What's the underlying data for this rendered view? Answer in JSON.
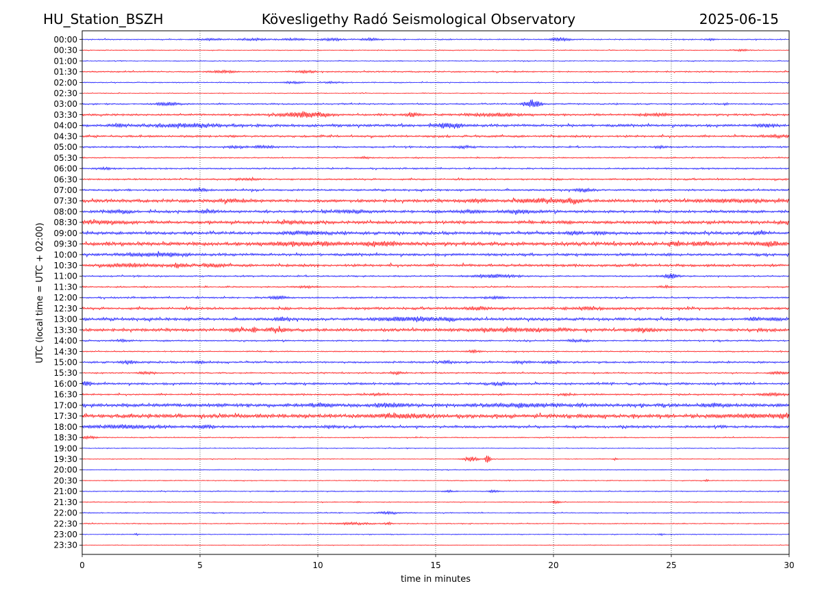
{
  "chart_data": {
    "type": "line",
    "title_left": "HU_Station_BSZH",
    "title_center": "Kövesligethy Radó Seismological Observatory",
    "title_right": "2025-06-15",
    "xlabel": "time in minutes",
    "ylabel": "UTC (local time = UTC + 02:00)",
    "xlim": [
      0,
      30
    ],
    "x_ticks": [
      0,
      5,
      10,
      15,
      20,
      25,
      30
    ],
    "x_gridlines": [
      5,
      10,
      15,
      20,
      25
    ],
    "row_colors": [
      "#0000ff",
      "#ff0000"
    ],
    "rows": [
      {
        "label": "00:00",
        "noise": 0.7,
        "events": [
          [
            5.5,
            0.5,
            1.2
          ],
          [
            7.3,
            0.6,
            1.5
          ],
          [
            9.0,
            0.5,
            1.5
          ],
          [
            10.6,
            0.5,
            1.5
          ],
          [
            12.2,
            0.5,
            1.5
          ],
          [
            20.3,
            0.4,
            2.5
          ],
          [
            26.7,
            0.2,
            1.2
          ]
        ]
      },
      {
        "label": "00:30",
        "noise": 0.5,
        "events": [
          [
            28.0,
            0.3,
            1.2
          ]
        ]
      },
      {
        "label": "01:00",
        "noise": 0.5,
        "events": []
      },
      {
        "label": "01:30",
        "noise": 0.8,
        "events": [
          [
            6.0,
            0.5,
            1.4
          ],
          [
            9.5,
            0.5,
            1.2
          ]
        ]
      },
      {
        "label": "02:00",
        "noise": 0.6,
        "events": [
          [
            9.0,
            0.4,
            1.5
          ],
          [
            10.6,
            0.3,
            1.3
          ]
        ]
      },
      {
        "label": "02:30",
        "noise": 0.5,
        "events": []
      },
      {
        "label": "03:00",
        "noise": 0.8,
        "events": [
          [
            3.6,
            0.6,
            2.0
          ],
          [
            19.1,
            0.35,
            6.0
          ],
          [
            27.3,
            0.1,
            1.4
          ]
        ]
      },
      {
        "label": "03:30",
        "noise": 1.2,
        "events": [
          [
            9.5,
            1.0,
            3.5
          ],
          [
            14.0,
            0.3,
            2.5
          ],
          [
            17.5,
            1.2,
            2.0
          ],
          [
            24.5,
            0.8,
            1.5
          ]
        ]
      },
      {
        "label": "04:00",
        "noise": 1.5,
        "events": [
          [
            1.5,
            0.3,
            2.0
          ],
          [
            4.5,
            1.5,
            1.8
          ],
          [
            15.6,
            0.6,
            3.0
          ],
          [
            29.0,
            0.5,
            1.5
          ]
        ]
      },
      {
        "label": "04:30",
        "noise": 1.2,
        "events": [
          [
            29.5,
            0.6,
            1.5
          ]
        ]
      },
      {
        "label": "05:00",
        "noise": 1.0,
        "events": [
          [
            6.5,
            0.4,
            1.5
          ],
          [
            7.7,
            0.4,
            1.6
          ],
          [
            16.2,
            0.4,
            1.6
          ],
          [
            24.5,
            0.2,
            2.0
          ]
        ]
      },
      {
        "label": "05:30",
        "noise": 0.7,
        "events": [
          [
            12.0,
            0.2,
            1.5
          ]
        ]
      },
      {
        "label": "06:00",
        "noise": 0.9,
        "events": [
          [
            1.0,
            0.3,
            1.3
          ]
        ]
      },
      {
        "label": "06:30",
        "noise": 1.0,
        "events": [
          [
            7.0,
            0.6,
            1.2
          ]
        ]
      },
      {
        "label": "07:00",
        "noise": 1.1,
        "events": [
          [
            5.0,
            0.4,
            1.5
          ],
          [
            21.3,
            0.4,
            2.2
          ]
        ]
      },
      {
        "label": "07:30",
        "noise": 1.8,
        "events": [
          [
            6.2,
            0.5,
            1.4
          ],
          [
            16.8,
            0.5,
            1.6
          ],
          [
            19.5,
            1.0,
            2.2
          ],
          [
            20.8,
            0.4,
            2.5
          ],
          [
            27.5,
            1.5,
            1.3
          ]
        ]
      },
      {
        "label": "08:00",
        "noise": 1.6,
        "events": [
          [
            1.5,
            0.5,
            1.4
          ],
          [
            5.3,
            0.4,
            1.5
          ],
          [
            11.5,
            0.6,
            1.4
          ],
          [
            16.5,
            0.5,
            1.8
          ],
          [
            18.5,
            0.6,
            2.0
          ]
        ]
      },
      {
        "label": "08:30",
        "noise": 1.8,
        "events": [
          [
            1.0,
            1.0,
            1.3
          ],
          [
            9.0,
            0.5,
            1.3
          ],
          [
            20.6,
            0.2,
            1.6
          ]
        ]
      },
      {
        "label": "09:00",
        "noise": 1.7,
        "events": [
          [
            9.5,
            1.0,
            1.6
          ],
          [
            20.9,
            0.3,
            2.0
          ],
          [
            22.0,
            0.4,
            1.6
          ],
          [
            28.8,
            0.3,
            1.6
          ]
        ]
      },
      {
        "label": "09:30",
        "noise": 2.1,
        "events": [
          [
            9.5,
            1.5,
            1.8
          ],
          [
            12.8,
            0.8,
            2.2
          ],
          [
            25.2,
            0.3,
            1.8
          ],
          [
            26.3,
            0.3,
            2.0
          ],
          [
            29.1,
            0.5,
            2.0
          ]
        ]
      },
      {
        "label": "10:00",
        "noise": 1.5,
        "events": [
          [
            3.2,
            1.2,
            2.0
          ]
        ]
      },
      {
        "label": "10:30",
        "noise": 1.5,
        "events": [
          [
            2.0,
            1.0,
            1.8
          ],
          [
            4.2,
            0.3,
            3.0
          ],
          [
            5.5,
            0.5,
            1.5
          ]
        ]
      },
      {
        "label": "11:00",
        "noise": 0.9,
        "events": [
          [
            17.5,
            1.0,
            2.0
          ],
          [
            25.0,
            0.3,
            3.5
          ]
        ]
      },
      {
        "label": "11:30",
        "noise": 0.8,
        "events": [
          [
            9.5,
            0.4,
            1.2
          ],
          [
            24.8,
            0.3,
            1.5
          ]
        ]
      },
      {
        "label": "12:00",
        "noise": 1.0,
        "events": [
          [
            8.3,
            0.4,
            2.0
          ],
          [
            17.5,
            0.5,
            1.3
          ]
        ]
      },
      {
        "label": "12:30",
        "noise": 1.4,
        "events": [
          [
            16.8,
            0.5,
            1.6
          ],
          [
            21.5,
            0.8,
            1.5
          ]
        ]
      },
      {
        "label": "13:00",
        "noise": 1.6,
        "events": [
          [
            8.5,
            0.3,
            1.8
          ],
          [
            14.0,
            1.2,
            2.5
          ],
          [
            15.5,
            0.3,
            2.0
          ],
          [
            28.5,
            0.3,
            1.8
          ],
          [
            29.5,
            0.4,
            1.6
          ]
        ]
      },
      {
        "label": "13:30",
        "noise": 1.7,
        "events": [
          [
            6.5,
            0.3,
            2.2
          ],
          [
            7.3,
            0.1,
            3.5
          ],
          [
            8.3,
            0.4,
            3.0
          ],
          [
            18.5,
            2.0,
            1.5
          ],
          [
            23.8,
            0.6,
            1.8
          ]
        ]
      },
      {
        "label": "14:00",
        "noise": 0.9,
        "events": [
          [
            1.7,
            0.3,
            1.4
          ],
          [
            21.0,
            0.4,
            1.8
          ]
        ]
      },
      {
        "label": "14:30",
        "noise": 0.7,
        "events": [
          [
            16.6,
            0.3,
            1.6
          ]
        ]
      },
      {
        "label": "15:00",
        "noise": 1.1,
        "events": [
          [
            2.0,
            0.4,
            1.8
          ],
          [
            5.0,
            0.3,
            1.4
          ],
          [
            15.5,
            0.3,
            1.5
          ],
          [
            18.6,
            0.4,
            1.5
          ],
          [
            20.0,
            0.3,
            1.4
          ]
        ]
      },
      {
        "label": "15:30",
        "noise": 0.8,
        "events": [
          [
            2.7,
            0.4,
            1.5
          ],
          [
            13.3,
            0.3,
            1.6
          ],
          [
            29.5,
            0.4,
            1.4
          ]
        ]
      },
      {
        "label": "16:00",
        "noise": 1.3,
        "events": [
          [
            0.2,
            0.2,
            2.5
          ],
          [
            17.8,
            0.4,
            1.6
          ]
        ]
      },
      {
        "label": "16:30",
        "noise": 1.0,
        "events": [
          [
            12.6,
            0.4,
            1.3
          ],
          [
            20.5,
            0.2,
            1.4
          ],
          [
            29.3,
            0.6,
            1.6
          ]
        ]
      },
      {
        "label": "17:00",
        "noise": 2.0,
        "events": [
          [
            10.0,
            0.6,
            1.5
          ],
          [
            13.0,
            0.8,
            1.5
          ],
          [
            18.5,
            1.5,
            1.4
          ],
          [
            26.8,
            0.4,
            1.5
          ]
        ]
      },
      {
        "label": "17:30",
        "noise": 2.2,
        "events": [
          [
            13.5,
            1.0,
            2.2
          ],
          [
            28.5,
            1.5,
            1.3
          ],
          [
            29.8,
            0.3,
            1.6
          ]
        ]
      },
      {
        "label": "18:00",
        "noise": 1.5,
        "events": [
          [
            1.8,
            1.5,
            1.6
          ],
          [
            5.3,
            0.3,
            2.0
          ],
          [
            10.5,
            0.3,
            1.3
          ]
        ]
      },
      {
        "label": "18:30",
        "noise": 0.6,
        "events": [
          [
            0.3,
            0.3,
            1.8
          ]
        ]
      },
      {
        "label": "19:00",
        "noise": 0.5,
        "events": []
      },
      {
        "label": "19:30",
        "noise": 0.5,
        "events": [
          [
            16.5,
            0.3,
            3.5
          ],
          [
            17.2,
            0.12,
            5.0
          ],
          [
            22.6,
            0.1,
            1.6
          ]
        ]
      },
      {
        "label": "20:00",
        "noise": 0.5,
        "events": []
      },
      {
        "label": "20:30",
        "noise": 0.5,
        "events": [
          [
            26.5,
            0.1,
            1.3
          ]
        ]
      },
      {
        "label": "21:00",
        "noise": 0.6,
        "events": [
          [
            17.5,
            0.2,
            1.8
          ],
          [
            15.6,
            0.2,
            1.3
          ]
        ]
      },
      {
        "label": "21:30",
        "noise": 0.5,
        "events": [
          [
            20.1,
            0.2,
            2.0
          ],
          [
            11.7,
            0.1,
            1.4
          ]
        ]
      },
      {
        "label": "22:00",
        "noise": 0.6,
        "events": [
          [
            13.0,
            0.5,
            1.4
          ]
        ]
      },
      {
        "label": "22:30",
        "noise": 0.6,
        "events": [
          [
            11.5,
            0.8,
            1.6
          ],
          [
            13.0,
            0.2,
            1.5
          ]
        ]
      },
      {
        "label": "23:00",
        "noise": 0.5,
        "events": [
          [
            2.3,
            0.1,
            1.3
          ],
          [
            24.6,
            0.1,
            1.3
          ]
        ]
      },
      {
        "label": "23:30",
        "noise": 0.4,
        "events": []
      }
    ]
  }
}
